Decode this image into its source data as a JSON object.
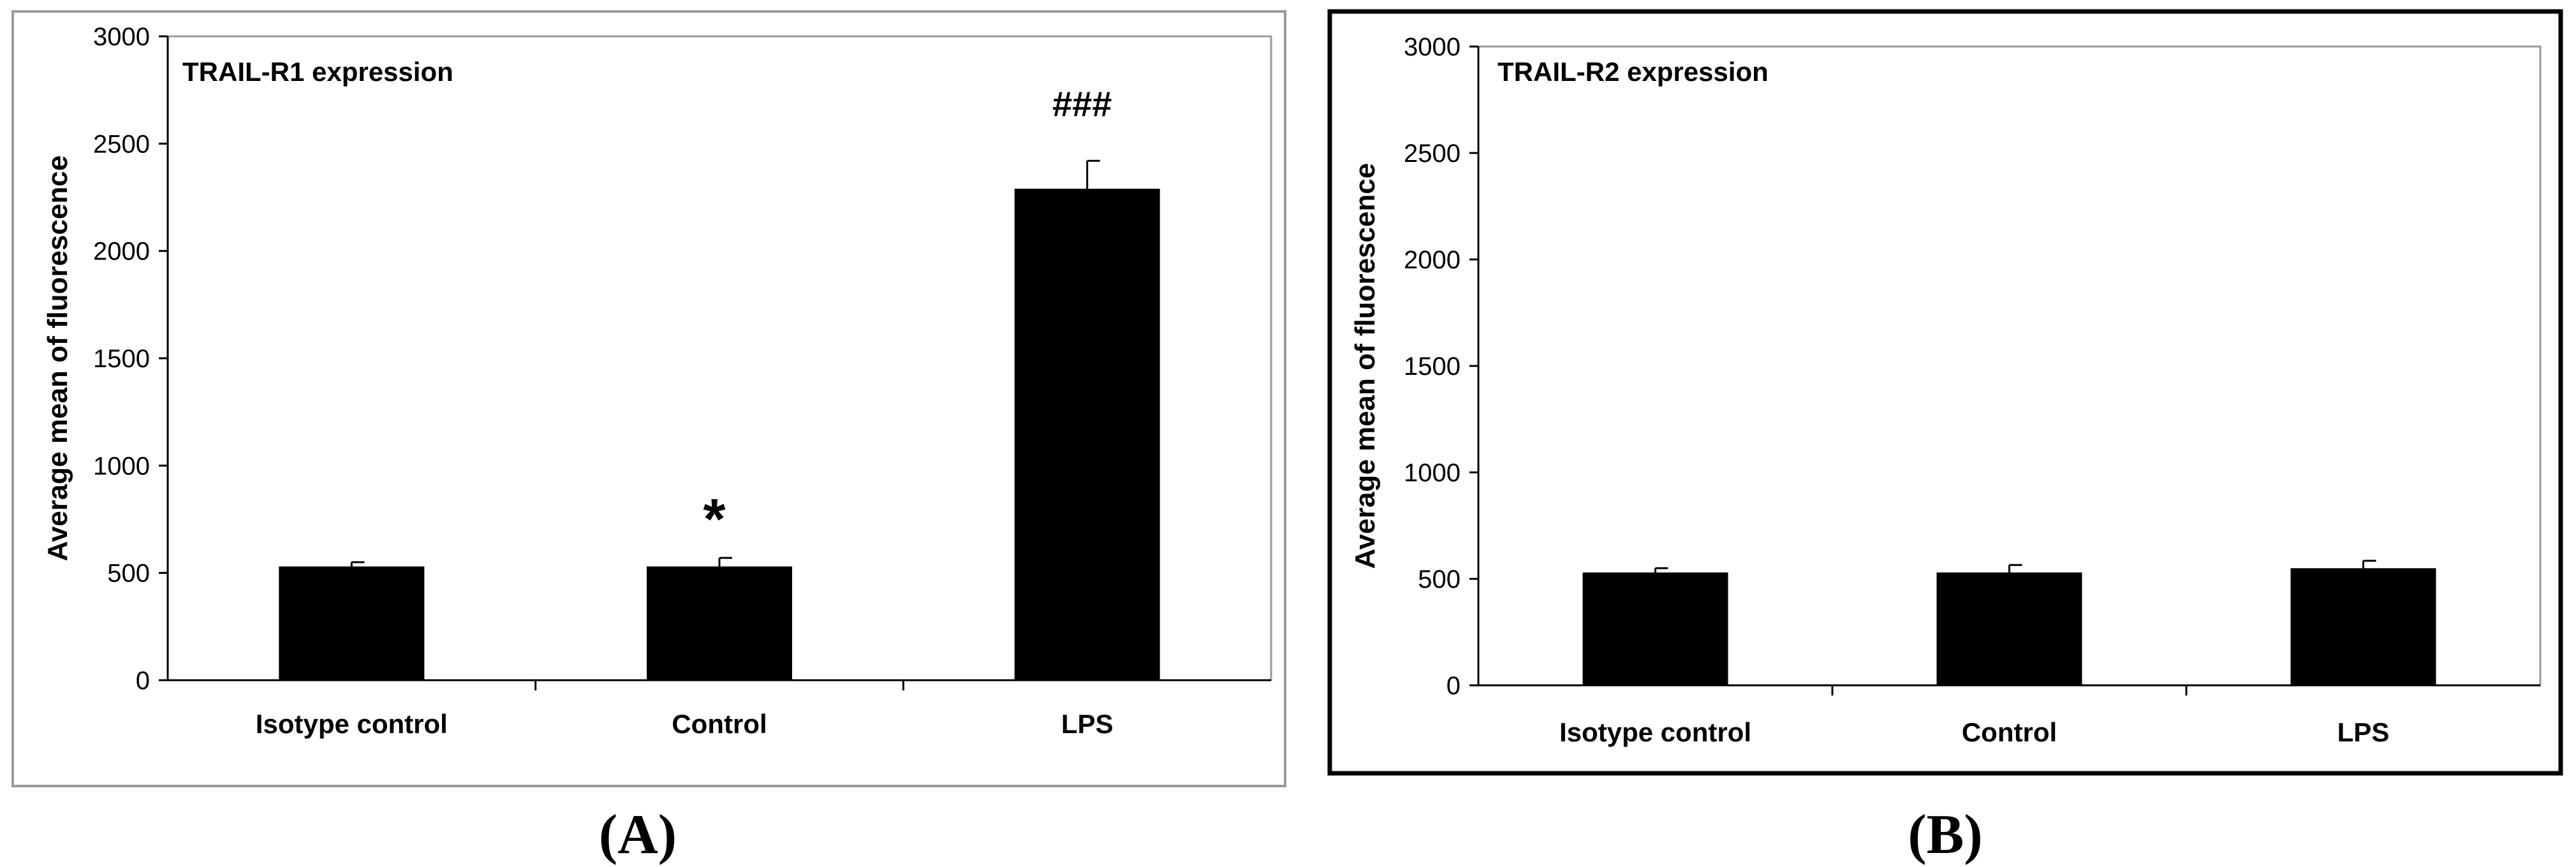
{
  "chart_data": [
    {
      "type": "bar",
      "panel_label": "(A)",
      "title": "TRAIL-R1 expression",
      "xlabel": "",
      "ylabel": "Average mean of fluorescence",
      "ylim": [
        0,
        3000
      ],
      "yticks": [
        0,
        500,
        1000,
        1500,
        2000,
        2500,
        3000
      ],
      "categories": [
        "Isotype control",
        "Control",
        "LPS"
      ],
      "series": [
        {
          "values": [
            530,
            530,
            2290
          ],
          "errors": [
            20,
            40,
            130
          ],
          "color": "#000000"
        }
      ],
      "annotations": [
        "",
        "*",
        "###"
      ],
      "grid": false,
      "frame": "light"
    },
    {
      "type": "bar",
      "panel_label": "(B)",
      "title": "TRAIL-R2 expression",
      "xlabel": "",
      "ylabel": "Average mean of fluorescence",
      "ylim": [
        0,
        3000
      ],
      "yticks": [
        0,
        500,
        1000,
        1500,
        2000,
        2500,
        3000
      ],
      "categories": [
        "Isotype control",
        "Control",
        "LPS"
      ],
      "series": [
        {
          "values": [
            530,
            530,
            550
          ],
          "errors": [
            20,
            35,
            35
          ],
          "color": "#000000"
        }
      ],
      "annotations": [
        "",
        "",
        ""
      ],
      "grid": false,
      "frame": "bold"
    }
  ]
}
